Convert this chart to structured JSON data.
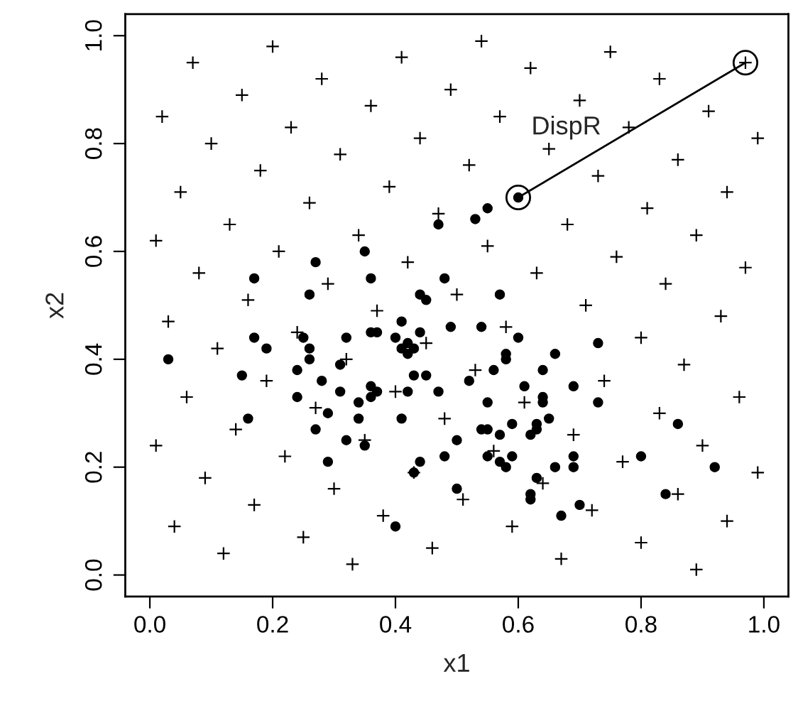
{
  "chart_data": {
    "type": "scatter",
    "xlabel": "x1",
    "ylabel": "x2",
    "xlim": [
      -0.04,
      1.04
    ],
    "ylim": [
      -0.04,
      1.04
    ],
    "xticks": [
      {
        "value": 0,
        "label": "0.0"
      },
      {
        "value": 0.2,
        "label": "0.2"
      },
      {
        "value": 0.4,
        "label": "0.4"
      },
      {
        "value": 0.6,
        "label": "0.6"
      },
      {
        "value": 0.8,
        "label": "0.8"
      },
      {
        "value": 1,
        "label": "1.0"
      }
    ],
    "yticks": [
      {
        "value": 0,
        "label": "0.0"
      },
      {
        "value": 0.2,
        "label": "0.2"
      },
      {
        "value": 0.4,
        "label": "0.4"
      },
      {
        "value": 0.6,
        "label": "0.6"
      },
      {
        "value": 0.8,
        "label": "0.8"
      },
      {
        "value": 1,
        "label": "1.0"
      }
    ],
    "grid": false,
    "legend": false,
    "annotations": [
      "DispR"
    ],
    "series": [
      {
        "marker": "cross",
        "color": "#000000",
        "x": [
          0.2,
          0.07,
          0.41,
          0.28,
          0.15,
          0.49,
          0.02,
          0.36,
          0.23,
          0.1,
          0.44,
          0.31,
          0.18,
          0.39,
          0.05,
          0.26,
          0.47,
          0.13,
          0.01,
          0.34,
          0.21,
          0.42,
          0.08,
          0.29,
          0.16,
          0.37,
          0.5,
          0.54,
          0.75,
          0.62,
          0.83,
          0.7,
          0.91,
          0.57,
          0.78,
          0.65,
          0.99,
          0.86,
          0.52,
          0.73,
          0.94,
          0.81,
          0.68,
          0.55,
          0.89,
          0.76,
          0.63,
          0.97,
          0.84,
          0.71,
          0.97,
          0.03,
          0.11,
          0.24,
          0.45,
          0.32,
          0.19,
          0.4,
          0.06,
          0.27,
          0.48,
          0.14,
          0.35,
          0.01,
          0.22,
          0.43,
          0.09,
          0.3,
          0.17,
          0.38,
          0.04,
          0.25,
          0.46,
          0.12,
          0.33,
          0.93,
          0.58,
          0.8,
          0.87,
          0.53,
          0.74,
          0.96,
          0.61,
          0.83,
          0.69,
          0.9,
          0.56,
          0.77,
          0.99,
          0.64,
          0.51,
          0.86,
          0.72,
          0.59,
          0.94,
          0.8,
          0.67,
          0.89
        ],
        "values": [
          0.98,
          0.95,
          0.96,
          0.92,
          0.89,
          0.9,
          0.85,
          0.87,
          0.83,
          0.8,
          0.81,
          0.78,
          0.75,
          0.72,
          0.71,
          0.69,
          0.67,
          0.65,
          0.62,
          0.63,
          0.6,
          0.58,
          0.56,
          0.54,
          0.51,
          0.49,
          0.52,
          0.99,
          0.97,
          0.94,
          0.92,
          0.88,
          0.86,
          0.85,
          0.83,
          0.79,
          0.81,
          0.77,
          0.76,
          0.74,
          0.71,
          0.68,
          0.65,
          0.61,
          0.63,
          0.59,
          0.56,
          0.57,
          0.54,
          0.5,
          0.95,
          0.47,
          0.42,
          0.45,
          0.43,
          0.4,
          0.36,
          0.34,
          0.33,
          0.31,
          0.29,
          0.27,
          0.25,
          0.24,
          0.22,
          0.19,
          0.18,
          0.16,
          0.13,
          0.11,
          0.09,
          0.07,
          0.05,
          0.04,
          0.02,
          0.48,
          0.46,
          0.44,
          0.39,
          0.38,
          0.36,
          0.33,
          0.32,
          0.3,
          0.26,
          0.24,
          0.23,
          0.21,
          0.19,
          0.17,
          0.14,
          0.15,
          0.12,
          0.09,
          0.1,
          0.06,
          0.03,
          0.01
        ]
      },
      {
        "marker": "circle",
        "color": "#000000",
        "x": [
          0.47,
          0.35,
          0.27,
          0.36,
          0.17,
          0.26,
          0.48,
          0.44,
          0.45,
          0.6,
          0.55,
          0.53,
          0.57,
          0.03,
          0.17,
          0.19,
          0.25,
          0.26,
          0.26,
          0.24,
          0.15,
          0.32,
          0.36,
          0.37,
          0.41,
          0.4,
          0.42,
          0.44,
          0.49,
          0.41,
          0.43,
          0.42,
          0.31,
          0.43,
          0.45,
          0.28,
          0.36,
          0.37,
          0.31,
          0.24,
          0.36,
          0.42,
          0.47,
          0.34,
          0.29,
          0.34,
          0.16,
          0.41,
          0.27,
          0.5,
          0.32,
          0.35,
          0.48,
          0.29,
          0.44,
          0.43,
          0.5,
          0.4,
          0.54,
          0.6,
          0.73,
          0.58,
          0.58,
          0.66,
          0.56,
          0.64,
          0.52,
          0.61,
          0.69,
          0.55,
          0.64,
          0.64,
          0.73,
          0.59,
          0.63,
          0.63,
          0.65,
          0.54,
          0.55,
          0.57,
          0.62,
          0.86,
          0.55,
          0.59,
          0.57,
          0.58,
          0.69,
          0.69,
          0.66,
          0.8,
          0.92,
          0.63,
          0.62,
          0.62,
          0.7,
          0.84,
          0.67
        ],
        "values": [
          0.65,
          0.6,
          0.58,
          0.55,
          0.55,
          0.52,
          0.55,
          0.52,
          0.51,
          0.7,
          0.68,
          0.66,
          0.52,
          0.4,
          0.44,
          0.42,
          0.44,
          0.42,
          0.4,
          0.38,
          0.37,
          0.44,
          0.45,
          0.45,
          0.47,
          0.44,
          0.43,
          0.45,
          0.46,
          0.42,
          0.42,
          0.41,
          0.39,
          0.37,
          0.37,
          0.36,
          0.35,
          0.34,
          0.34,
          0.33,
          0.33,
          0.34,
          0.34,
          0.32,
          0.3,
          0.29,
          0.29,
          0.29,
          0.27,
          0.25,
          0.25,
          0.24,
          0.22,
          0.21,
          0.21,
          0.19,
          0.16,
          0.09,
          0.46,
          0.44,
          0.43,
          0.41,
          0.4,
          0.41,
          0.38,
          0.38,
          0.36,
          0.35,
          0.35,
          0.32,
          0.33,
          0.32,
          0.32,
          0.28,
          0.28,
          0.27,
          0.29,
          0.27,
          0.27,
          0.26,
          0.26,
          0.28,
          0.22,
          0.22,
          0.21,
          0.2,
          0.22,
          0.2,
          0.2,
          0.22,
          0.2,
          0.18,
          0.15,
          0.14,
          0.13,
          0.15,
          0.11
        ]
      },
      {
        "type": "line",
        "marker": "circle",
        "color": "#000000",
        "x": [
          0.6,
          0.97
        ],
        "values": [
          0.7,
          0.95
        ]
      }
    ]
  }
}
